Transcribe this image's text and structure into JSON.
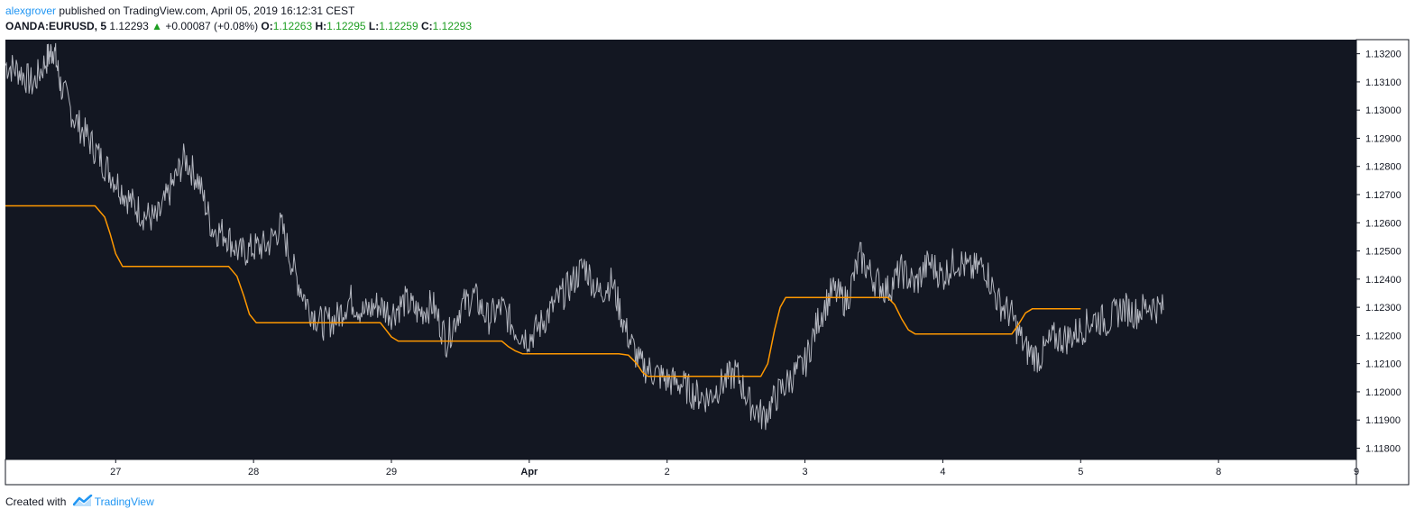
{
  "header": {
    "author": "alexgrover",
    "published_text": " published on TradingView.com, April 05, 2019 16:12:31 CEST",
    "symbol": "OANDA:EURUSD, 5",
    "last": "1.12293",
    "arrow": "▲",
    "change": "+0.00087 (+0.08%)",
    "o_label": "O:",
    "o_value": "1.12263",
    "h_label": "H:",
    "h_value": "1.12295",
    "l_label": "L:",
    "l_value": "1.12259",
    "c_label": "C:",
    "c_value": "1.12293"
  },
  "footer": {
    "created_with": "Created with",
    "brand": "TradingView"
  },
  "colors": {
    "background": "#131722",
    "price_line": "#b2b5be",
    "indicator": "#ff9800",
    "axis_text": "#131722"
  },
  "chart_data": {
    "type": "line",
    "ylim": [
      1.1176,
      1.1325
    ],
    "xlim": [
      26.2,
      36.0
    ],
    "y_ticks": [
      "1.13200",
      "1.13100",
      "1.13000",
      "1.12900",
      "1.12800",
      "1.12700",
      "1.12600",
      "1.12500",
      "1.12400",
      "1.12300",
      "1.12200",
      "1.12100",
      "1.12000",
      "1.11900",
      "1.11800"
    ],
    "x_ticks": [
      {
        "label": "27",
        "x": 27
      },
      {
        "label": "28",
        "x": 28
      },
      {
        "label": "29",
        "x": 29
      },
      {
        "label": "Apr",
        "x": 30
      },
      {
        "label": "2",
        "x": 31
      },
      {
        "label": "3",
        "x": 32
      },
      {
        "label": "4",
        "x": 33
      },
      {
        "label": "5",
        "x": 34
      },
      {
        "label": "8",
        "x": 35
      },
      {
        "label": "9",
        "x": 36
      }
    ],
    "series": [
      {
        "type": "price",
        "x": [
          26.2,
          26.3,
          26.4,
          26.5,
          26.55,
          26.6,
          26.7,
          26.8,
          26.9,
          27.0,
          27.1,
          27.2,
          27.3,
          27.4,
          27.5,
          27.6,
          27.7,
          27.8,
          27.9,
          28.0,
          28.1,
          28.2,
          28.3,
          28.4,
          28.5,
          28.6,
          28.7,
          28.8,
          28.9,
          29.0,
          29.1,
          29.2,
          29.3,
          29.4,
          29.5,
          29.6,
          29.7,
          29.8,
          29.9,
          30.0,
          30.1,
          30.2,
          30.3,
          30.4,
          30.5,
          30.6,
          30.7,
          30.8,
          30.9,
          31.0,
          31.1,
          31.2,
          31.3,
          31.4,
          31.5,
          31.6,
          31.7,
          31.8,
          31.9,
          32.0,
          32.1,
          32.2,
          32.3,
          32.4,
          32.5,
          32.6,
          32.7,
          32.8,
          32.9,
          33.0,
          33.1,
          33.2,
          33.3,
          33.4,
          33.5,
          33.6,
          33.7,
          33.8,
          33.9,
          34.0,
          34.1,
          34.2,
          34.3,
          34.4,
          34.5,
          34.6
        ],
        "y": [
          1.1316,
          1.1314,
          1.1309,
          1.1318,
          1.1322,
          1.1309,
          1.1297,
          1.129,
          1.1282,
          1.1275,
          1.1268,
          1.1263,
          1.1261,
          1.1272,
          1.1283,
          1.1275,
          1.1258,
          1.1256,
          1.1249,
          1.1251,
          1.1252,
          1.1259,
          1.1242,
          1.123,
          1.1224,
          1.1226,
          1.1233,
          1.1228,
          1.1231,
          1.1228,
          1.1232,
          1.1228,
          1.1231,
          1.1218,
          1.123,
          1.1234,
          1.1226,
          1.123,
          1.1222,
          1.1219,
          1.1225,
          1.1232,
          1.1238,
          1.1245,
          1.1235,
          1.1239,
          1.1222,
          1.121,
          1.1207,
          1.1204,
          1.1203,
          1.1199,
          1.1198,
          1.1203,
          1.1207,
          1.1196,
          1.1191,
          1.1199,
          1.1205,
          1.121,
          1.1226,
          1.1236,
          1.1232,
          1.1248,
          1.124,
          1.1236,
          1.1243,
          1.1238,
          1.1246,
          1.1241,
          1.1247,
          1.1243,
          1.1245,
          1.1232,
          1.1227,
          1.1215,
          1.1212,
          1.1219,
          1.1219,
          1.1222,
          1.1226,
          1.1225,
          1.123,
          1.1228,
          1.1231,
          1.1229
        ]
      },
      {
        "type": "indicator",
        "x": [
          26.2,
          26.85,
          26.92,
          26.96,
          27.0,
          27.05,
          27.1,
          27.82,
          27.88,
          27.93,
          27.97,
          28.02,
          28.1,
          28.92,
          28.96,
          29.0,
          29.05,
          29.1,
          29.8,
          29.85,
          29.9,
          29.95,
          30.0,
          30.65,
          30.72,
          30.78,
          30.82,
          30.86,
          30.92,
          31.68,
          31.73,
          31.78,
          31.82,
          31.86,
          31.95,
          32.6,
          32.65,
          32.7,
          32.75,
          32.8,
          32.9,
          33.5,
          33.55,
          33.6,
          33.65,
          33.7,
          34.0
        ],
        "y": [
          1.1266,
          1.1266,
          1.1262,
          1.1256,
          1.1249,
          1.12445,
          1.12445,
          1.12445,
          1.1241,
          1.1234,
          1.12275,
          1.12245,
          1.12245,
          1.12245,
          1.1222,
          1.12195,
          1.1218,
          1.1218,
          1.1218,
          1.1216,
          1.12145,
          1.12135,
          1.12135,
          1.12135,
          1.1213,
          1.121,
          1.1207,
          1.12055,
          1.12055,
          1.12055,
          1.121,
          1.1222,
          1.123,
          1.12335,
          1.12335,
          1.12335,
          1.1231,
          1.1226,
          1.1222,
          1.12205,
          1.12205,
          1.12205,
          1.1224,
          1.1228,
          1.12295,
          1.12295,
          1.12295
        ]
      }
    ]
  }
}
